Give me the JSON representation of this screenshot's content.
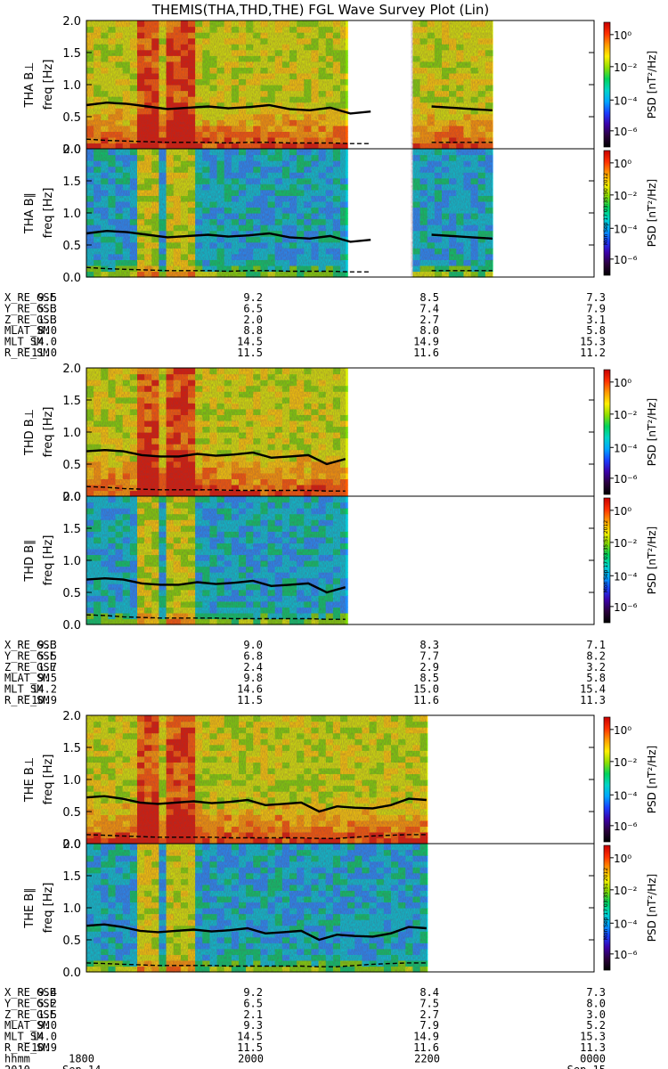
{
  "title": "THEMIS(THA,THD,THE) FGL Wave Survey Plot (Lin)",
  "colorbar": {
    "label": "PSD [nT²/Hz]",
    "tick_labels": [
      "10⁰",
      "10⁻²",
      "10⁻⁴",
      "10⁻⁶"
    ],
    "colors": [
      "#000000",
      "#2a003d",
      "#3b00a8",
      "#1a3dff",
      "#00a6ff",
      "#00d4c8",
      "#00d35b",
      "#8ee000",
      "#ffef00",
      "#ff9900",
      "#ff3000",
      "#c80000"
    ]
  },
  "stamps": [
    "Mon Sep 17 03:35:50 2012",
    "Mon Sep 17 03:35:51 2012",
    "Mon Sep 17 03:35:51 2012"
  ],
  "freq_ticks": [
    "0.0",
    "0.5",
    "1.0",
    "1.5",
    "2.0"
  ],
  "chart_data": [
    {
      "type": "heatmap",
      "probe": "THA",
      "panels": [
        {
          "component": "perp",
          "ylabel_line1": "THA B⊥",
          "ylabel_line2": "freq [Hz]"
        },
        {
          "component": "par",
          "ylabel_line1": "THA B∥",
          "ylabel_line2": "freq [Hz]"
        }
      ],
      "ylim": [
        0,
        2
      ],
      "x_fraction_ranges_with_data": [
        [
          0.0,
          0.51
        ],
        [
          0.64,
          0.8
        ]
      ],
      "solid_line_freq": [
        0.68,
        0.72,
        0.7,
        0.66,
        0.62,
        0.64,
        0.66,
        0.63,
        0.65,
        0.68,
        0.62,
        0.6,
        0.64,
        0.55,
        0.58,
        null,
        null,
        0.66,
        0.64,
        0.62,
        0.6
      ],
      "dashed_line_freq": [
        0.15,
        0.13,
        0.12,
        0.11,
        0.1,
        0.1,
        0.1,
        0.09,
        0.1,
        0.1,
        0.09,
        0.09,
        0.09,
        0.08,
        0.08,
        null,
        null,
        0.1,
        0.1,
        0.1,
        0.1
      ],
      "ephemeris": [
        {
          "name": "X_RE_GSE",
          "values": [
            "9.5",
            "9.2",
            "8.5",
            "7.3"
          ]
        },
        {
          "name": "Y_RE_GSE",
          "values": [
            "5.3",
            "6.5",
            "7.4",
            "7.9"
          ]
        },
        {
          "name": "Z_RE_GSE",
          "values": [
            "1.3",
            "2.0",
            "2.7",
            "3.1"
          ]
        },
        {
          "name": "MLAT_SM",
          "values": [
            "8.0",
            "8.8",
            "8.0",
            "5.8"
          ]
        },
        {
          "name": "MLT_SM",
          "values": [
            "14.0",
            "14.5",
            "14.9",
            "15.3"
          ]
        },
        {
          "name": "R_RE_SM",
          "values": [
            "11.0",
            "11.5",
            "11.6",
            "11.2"
          ]
        }
      ]
    },
    {
      "type": "heatmap",
      "probe": "THD",
      "panels": [
        {
          "component": "perp",
          "ylabel_line1": "THD B⊥",
          "ylabel_line2": "freq [Hz]"
        },
        {
          "component": "par",
          "ylabel_line1": "THD B∥",
          "ylabel_line2": "freq [Hz]"
        }
      ],
      "ylim": [
        0,
        2
      ],
      "x_fraction_ranges_with_data": [
        [
          0.0,
          0.51
        ]
      ],
      "solid_line_freq": [
        0.7,
        0.72,
        0.7,
        0.64,
        0.62,
        0.62,
        0.66,
        0.63,
        0.65,
        0.68,
        0.6,
        0.62,
        0.64,
        0.5,
        0.58
      ],
      "dashed_line_freq": [
        0.15,
        0.14,
        0.12,
        0.11,
        0.1,
        0.1,
        0.1,
        0.1,
        0.09,
        0.09,
        0.09,
        0.09,
        0.09,
        0.08,
        0.08
      ],
      "ephemeris": [
        {
          "name": "X_RE_GSE",
          "values": [
            "9.3",
            "9.0",
            "8.3",
            "7.1"
          ]
        },
        {
          "name": "Y_RE_GSE",
          "values": [
            "5.5",
            "6.8",
            "7.7",
            "8.2"
          ]
        },
        {
          "name": "Z_RE_GSE",
          "values": [
            "1.7",
            "2.4",
            "2.9",
            "3.2"
          ]
        },
        {
          "name": "MLAT_SM",
          "values": [
            "9.5",
            "9.8",
            "8.5",
            "5.8"
          ]
        },
        {
          "name": "MLT_SM",
          "values": [
            "14.2",
            "14.6",
            "15.0",
            "15.4"
          ]
        },
        {
          "name": "R_RE_SM",
          "values": [
            "10.9",
            "11.5",
            "11.6",
            "11.3"
          ]
        }
      ]
    },
    {
      "type": "heatmap",
      "probe": "THE",
      "panels": [
        {
          "component": "perp",
          "ylabel_line1": "THE B⊥",
          "ylabel_line2": "freq [Hz]"
        },
        {
          "component": "par",
          "ylabel_line1": "THE B∥",
          "ylabel_line2": "freq [Hz]"
        }
      ],
      "ylim": [
        0,
        2
      ],
      "x_fraction_ranges_with_data": [
        [
          0.0,
          0.67
        ]
      ],
      "solid_line_freq": [
        0.72,
        0.74,
        0.7,
        0.64,
        0.62,
        0.64,
        0.66,
        0.63,
        0.65,
        0.68,
        0.6,
        0.62,
        0.64,
        0.5,
        0.58,
        0.56,
        0.55,
        0.6,
        0.7,
        0.68
      ],
      "dashed_line_freq": [
        0.14,
        0.13,
        0.12,
        0.11,
        0.1,
        0.1,
        0.1,
        0.1,
        0.09,
        0.09,
        0.09,
        0.09,
        0.09,
        0.08,
        0.08,
        0.1,
        0.12,
        0.13,
        0.14,
        0.14
      ],
      "ephemeris": [
        {
          "name": "X_RE_GSE",
          "values": [
            "9.4",
            "9.2",
            "8.4",
            "7.3"
          ]
        },
        {
          "name": "Y_RE_GSE",
          "values": [
            "5.2",
            "6.5",
            "7.5",
            "8.0"
          ]
        },
        {
          "name": "Z_RE_GSE",
          "values": [
            "1.5",
            "2.1",
            "2.7",
            "3.0"
          ]
        },
        {
          "name": "MLAT_SM",
          "values": [
            "9.0",
            "9.3",
            "7.9",
            "5.2"
          ]
        },
        {
          "name": "MLT_SM",
          "values": [
            "14.0",
            "14.5",
            "14.9",
            "15.3"
          ]
        },
        {
          "name": "R_RE_SM",
          "values": [
            "10.9",
            "11.5",
            "11.6",
            "11.3"
          ]
        }
      ],
      "time_axis": {
        "row_label": "hhmm",
        "values": [
          "1800",
          "2000",
          "2200",
          "0000"
        ],
        "date_row_label": "2010",
        "dates": [
          "Sep 14",
          "Sep 15"
        ]
      }
    }
  ]
}
